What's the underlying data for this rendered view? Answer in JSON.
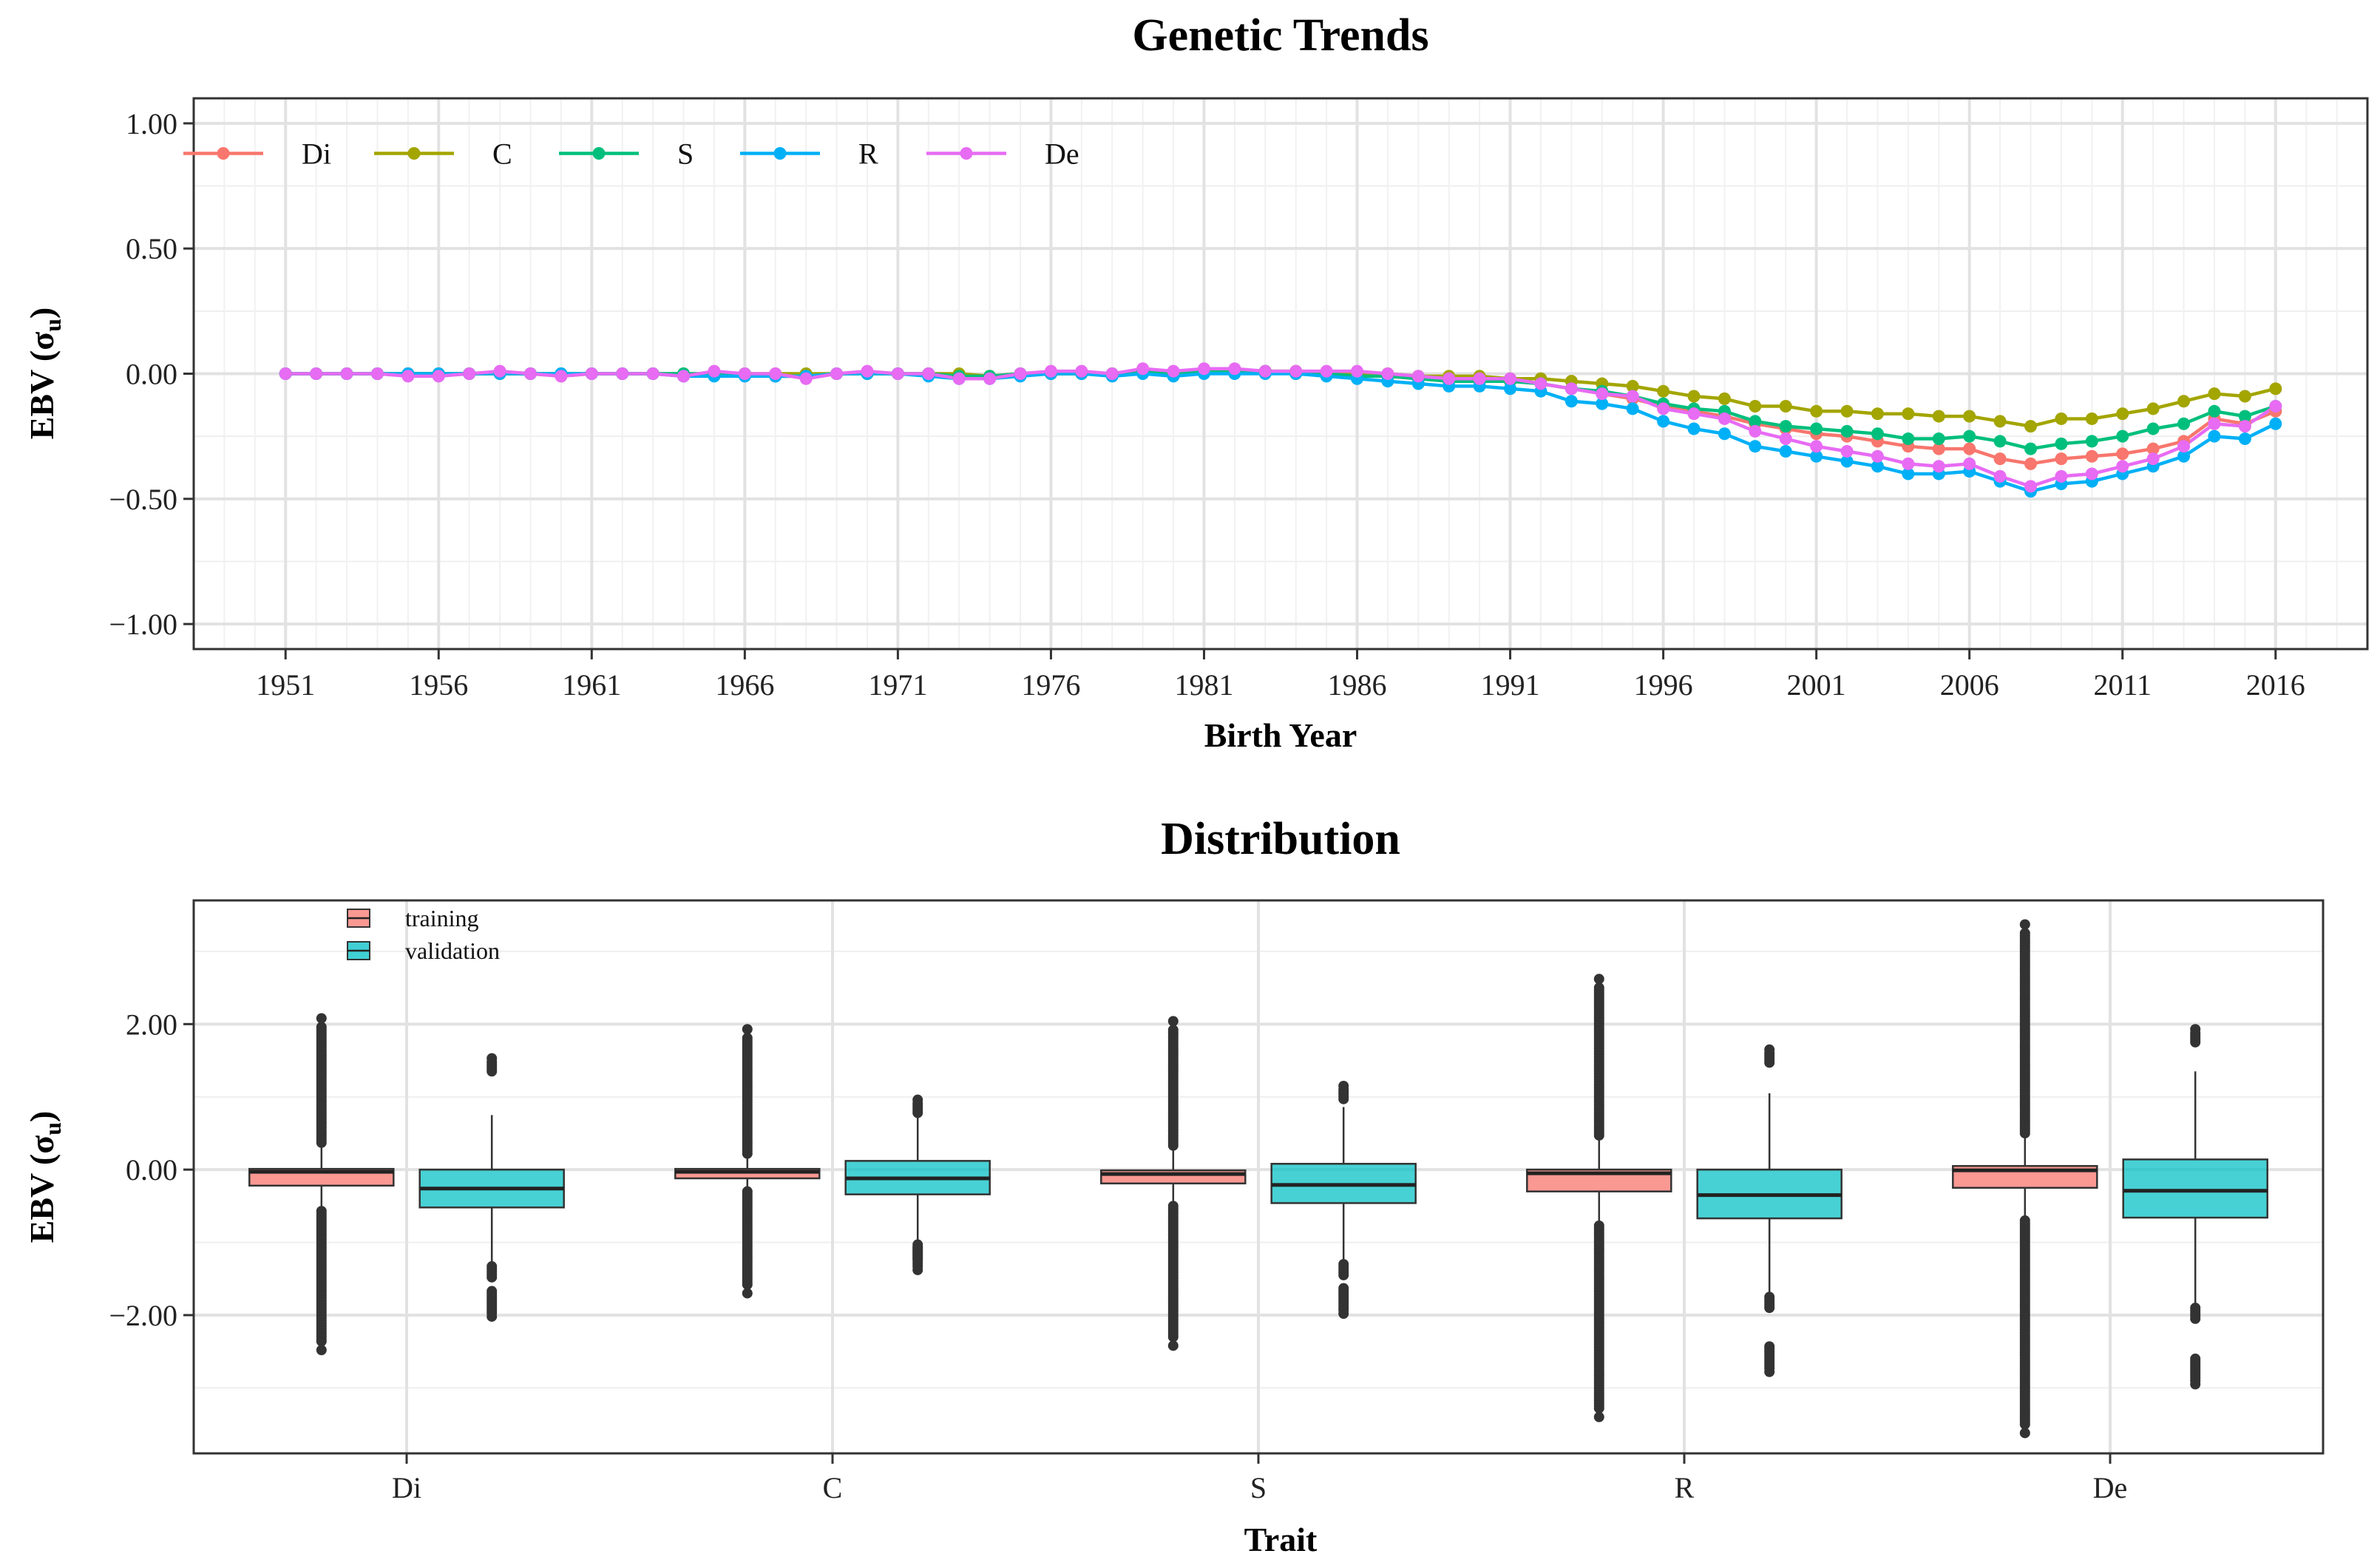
{
  "chart_data": [
    {
      "type": "line",
      "title": "Genetic Trends",
      "xlabel": "Birth Year",
      "ylabel": "EBV (σ",
      "ylabel_sub": "u",
      "ylabel_close": ")",
      "xlim": [
        1948,
        2019
      ],
      "ylim": [
        -1.1,
        1.1
      ],
      "x_ticks": [
        1951,
        1956,
        1961,
        1966,
        1971,
        1976,
        1981,
        1986,
        1991,
        1996,
        2001,
        2006,
        2011,
        2016
      ],
      "x_tick_labels": [
        "1951",
        "1956",
        "1961",
        "1966",
        "1971",
        "1976",
        "1981",
        "1986",
        "1991",
        "1996",
        "2001",
        "2006",
        "2011",
        "2016"
      ],
      "y_ticks": [
        1.0,
        0.5,
        0.0,
        -0.5,
        -1.0
      ],
      "y_tick_labels": [
        "1.00",
        "0.50",
        "0.00",
        "−0.50",
        "−1.00"
      ],
      "legend_position": "top-left",
      "grid": true,
      "x": [
        1951,
        1952,
        1953,
        1954,
        1955,
        1956,
        1957,
        1958,
        1959,
        1960,
        1961,
        1962,
        1963,
        1964,
        1965,
        1966,
        1967,
        1968,
        1969,
        1970,
        1971,
        1972,
        1973,
        1974,
        1975,
        1976,
        1977,
        1978,
        1979,
        1980,
        1981,
        1982,
        1983,
        1984,
        1985,
        1986,
        1987,
        1988,
        1989,
        1990,
        1991,
        1992,
        1993,
        1994,
        1995,
        1996,
        1997,
        1998,
        1999,
        2000,
        2001,
        2002,
        2003,
        2004,
        2005,
        2006,
        2007,
        2008,
        2009,
        2010,
        2011,
        2012,
        2013,
        2014,
        2015,
        2016
      ],
      "series": [
        {
          "name": "Di",
          "color": "#F8766D",
          "values": [
            0.0,
            0.0,
            0.0,
            0.0,
            0.0,
            0.0,
            0.0,
            0.0,
            0.0,
            -0.01,
            0.0,
            0.0,
            0.0,
            -0.01,
            0.0,
            0.0,
            -0.01,
            -0.01,
            0.0,
            0.0,
            0.0,
            0.0,
            -0.01,
            -0.01,
            0.0,
            0.0,
            0.0,
            0.0,
            0.01,
            0.0,
            0.01,
            0.01,
            0.01,
            0.0,
            0.0,
            0.0,
            -0.01,
            -0.02,
            -0.02,
            -0.03,
            -0.03,
            -0.04,
            -0.06,
            -0.08,
            -0.1,
            -0.13,
            -0.15,
            -0.17,
            -0.2,
            -0.22,
            -0.24,
            -0.25,
            -0.27,
            -0.29,
            -0.3,
            -0.3,
            -0.34,
            -0.36,
            -0.34,
            -0.33,
            -0.32,
            -0.3,
            -0.27,
            -0.18,
            -0.2,
            -0.15
          ]
        },
        {
          "name": "C",
          "color": "#A3A500",
          "values": [
            0.0,
            0.0,
            0.0,
            0.0,
            0.0,
            0.0,
            0.0,
            0.0,
            0.0,
            0.0,
            0.0,
            0.0,
            0.0,
            0.0,
            0.0,
            0.0,
            0.0,
            0.0,
            0.0,
            0.0,
            0.0,
            0.0,
            0.0,
            -0.01,
            0.0,
            0.0,
            0.0,
            0.0,
            0.01,
            0.0,
            0.01,
            0.01,
            0.01,
            0.01,
            0.0,
            0.0,
            0.0,
            -0.01,
            -0.01,
            -0.01,
            -0.02,
            -0.02,
            -0.03,
            -0.04,
            -0.05,
            -0.07,
            -0.09,
            -0.1,
            -0.13,
            -0.13,
            -0.15,
            -0.15,
            -0.16,
            -0.16,
            -0.17,
            -0.17,
            -0.19,
            -0.21,
            -0.18,
            -0.18,
            -0.16,
            -0.14,
            -0.11,
            -0.08,
            -0.09,
            -0.06
          ]
        },
        {
          "name": "S",
          "color": "#00BF7D",
          "values": [
            0.0,
            0.0,
            0.0,
            0.0,
            0.0,
            0.0,
            0.0,
            0.0,
            0.0,
            0.0,
            0.0,
            0.0,
            0.0,
            0.0,
            0.0,
            0.0,
            -0.01,
            -0.01,
            0.0,
            0.0,
            0.0,
            0.0,
            -0.01,
            -0.01,
            0.0,
            0.0,
            0.0,
            0.0,
            0.01,
            0.0,
            0.01,
            0.01,
            0.01,
            0.0,
            0.0,
            -0.01,
            -0.01,
            -0.02,
            -0.03,
            -0.03,
            -0.03,
            -0.04,
            -0.06,
            -0.07,
            -0.09,
            -0.12,
            -0.14,
            -0.15,
            -0.19,
            -0.21,
            -0.22,
            -0.23,
            -0.24,
            -0.26,
            -0.26,
            -0.25,
            -0.27,
            -0.3,
            -0.28,
            -0.27,
            -0.25,
            -0.22,
            -0.2,
            -0.15,
            -0.17,
            -0.13
          ]
        },
        {
          "name": "R",
          "color": "#00B0F6",
          "values": [
            0.0,
            0.0,
            0.0,
            0.0,
            0.0,
            0.0,
            0.0,
            0.0,
            0.0,
            0.0,
            0.0,
            0.0,
            0.0,
            -0.01,
            -0.01,
            -0.01,
            -0.01,
            -0.01,
            0.0,
            0.0,
            0.0,
            -0.01,
            -0.02,
            -0.02,
            -0.01,
            0.0,
            0.0,
            -0.01,
            0.0,
            -0.01,
            0.0,
            0.0,
            0.0,
            0.0,
            -0.01,
            -0.02,
            -0.03,
            -0.04,
            -0.05,
            -0.05,
            -0.06,
            -0.07,
            -0.11,
            -0.12,
            -0.14,
            -0.19,
            -0.22,
            -0.24,
            -0.29,
            -0.31,
            -0.33,
            -0.35,
            -0.37,
            -0.4,
            -0.4,
            -0.39,
            -0.43,
            -0.47,
            -0.44,
            -0.43,
            -0.4,
            -0.37,
            -0.33,
            -0.25,
            -0.26,
            -0.2
          ]
        },
        {
          "name": "De",
          "color": "#E76BF3",
          "values": [
            0.0,
            0.0,
            0.0,
            0.0,
            -0.01,
            -0.01,
            0.0,
            0.01,
            0.0,
            -0.01,
            0.0,
            0.0,
            0.0,
            -0.01,
            0.01,
            0.0,
            0.0,
            -0.02,
            0.0,
            0.01,
            0.0,
            0.0,
            -0.02,
            -0.02,
            0.0,
            0.01,
            0.01,
            0.0,
            0.02,
            0.01,
            0.02,
            0.02,
            0.01,
            0.01,
            0.01,
            0.01,
            0.0,
            -0.01,
            -0.02,
            -0.02,
            -0.02,
            -0.04,
            -0.06,
            -0.08,
            -0.09,
            -0.14,
            -0.16,
            -0.18,
            -0.23,
            -0.26,
            -0.29,
            -0.31,
            -0.33,
            -0.36,
            -0.37,
            -0.36,
            -0.41,
            -0.45,
            -0.41,
            -0.4,
            -0.37,
            -0.34,
            -0.29,
            -0.2,
            -0.21,
            -0.13
          ]
        }
      ]
    },
    {
      "type": "box",
      "title": "Distribution",
      "xlabel": "Trait",
      "ylabel": "EBV (σ",
      "ylabel_sub": "u",
      "ylabel_close": ")",
      "ylim": [
        -3.9,
        3.7
      ],
      "y_ticks": [
        2.0,
        0.0,
        -2.0
      ],
      "y_tick_labels": [
        "2.00",
        "0.00",
        "−2.00"
      ],
      "categories": [
        "Di",
        "C",
        "S",
        "R",
        "De"
      ],
      "legend_position": "top-left",
      "grid": true,
      "series": [
        {
          "name": "training",
          "color": "#F8766D",
          "boxes": [
            {
              "q1": -0.22,
              "median": -0.03,
              "q3": 0.01,
              "whisker_low": -0.52,
              "whisker_high": 0.32,
              "outlier_high": 2.08,
              "outlier_low": -2.48
            },
            {
              "q1": -0.12,
              "median": -0.03,
              "q3": 0.01,
              "whisker_low": -0.25,
              "whisker_high": 0.17,
              "outlier_high": 1.93,
              "outlier_low": -1.7
            },
            {
              "q1": -0.19,
              "median": -0.06,
              "q3": -0.01,
              "whisker_low": -0.45,
              "whisker_high": 0.28,
              "outlier_high": 2.04,
              "outlier_low": -2.42
            },
            {
              "q1": -0.3,
              "median": -0.05,
              "q3": 0.0,
              "whisker_low": -0.72,
              "whisker_high": 0.42,
              "outlier_high": 2.62,
              "outlier_low": -3.4
            },
            {
              "q1": -0.25,
              "median": -0.01,
              "q3": 0.05,
              "whisker_low": -0.65,
              "whisker_high": 0.45,
              "outlier_high": 3.37,
              "outlier_low": -3.62
            }
          ]
        },
        {
          "name": "validation",
          "color": "#00BFC4",
          "boxes": [
            {
              "q1": -0.52,
              "median": -0.26,
              "q3": 0.0,
              "whisker_low": -1.28,
              "whisker_high": 0.75,
              "outlier_high": 1.53,
              "outlier_low": -2.02
            },
            {
              "q1": -0.34,
              "median": -0.12,
              "q3": 0.12,
              "whisker_low": -1.02,
              "whisker_high": 0.82,
              "outlier_high": 0.96,
              "outlier_low": -1.38
            },
            {
              "q1": -0.46,
              "median": -0.21,
              "q3": 0.08,
              "whisker_low": -1.25,
              "whisker_high": 0.86,
              "outlier_high": 1.15,
              "outlier_low": -1.98
            },
            {
              "q1": -0.67,
              "median": -0.35,
              "q3": 0.0,
              "whisker_low": -1.7,
              "whisker_high": 1.05,
              "outlier_high": 1.65,
              "outlier_low": -2.78
            },
            {
              "q1": -0.66,
              "median": -0.29,
              "q3": 0.14,
              "whisker_low": -1.85,
              "whisker_high": 1.35,
              "outlier_high": 1.93,
              "outlier_low": -2.95
            }
          ]
        }
      ]
    }
  ]
}
